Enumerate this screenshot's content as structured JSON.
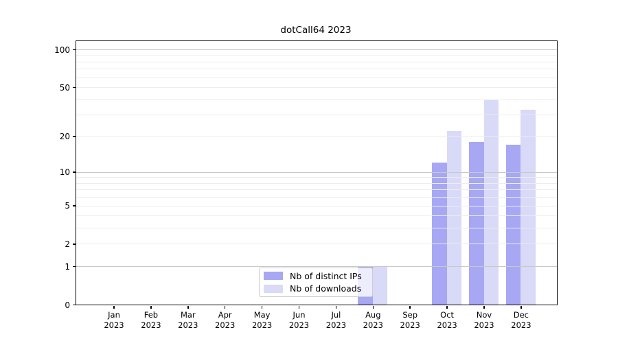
{
  "title": "dotCall64 2023",
  "colors": {
    "ips": "#a7a7f3",
    "downloads": "#d9d9f8",
    "grid_major": "#c9c9c9",
    "grid_minor": "#ededed",
    "spine": "#000000"
  },
  "legend": {
    "items": [
      {
        "label": "Nb of distinct IPs",
        "series": "ips"
      },
      {
        "label": "Nb of downloads",
        "series": "downloads"
      }
    ]
  },
  "chart_data": {
    "type": "bar",
    "title": "dotCall64 2023",
    "categories": [
      "Jan 2023",
      "Feb 2023",
      "Mar 2023",
      "Apr 2023",
      "May 2023",
      "Jun 2023",
      "Jul 2023",
      "Aug 2023",
      "Sep 2023",
      "Oct 2023",
      "Nov 2023",
      "Dec 2023"
    ],
    "x_tick_months": [
      "Jan",
      "Feb",
      "Mar",
      "Apr",
      "May",
      "Jun",
      "Jul",
      "Aug",
      "Sep",
      "Oct",
      "Nov",
      "Dec"
    ],
    "x_tick_year": "2023",
    "series": [
      {
        "name": "Nb of distinct IPs",
        "color_key": "ips",
        "values": [
          0,
          0,
          0,
          0,
          0,
          0,
          0,
          1,
          0,
          12,
          18,
          17
        ]
      },
      {
        "name": "Nb of downloads",
        "color_key": "downloads",
        "values": [
          0,
          0,
          0,
          0,
          0,
          0,
          0,
          1,
          0,
          22,
          40,
          33
        ]
      }
    ],
    "y_scale": "log1p",
    "y_ticks": [
      100,
      50,
      20,
      10,
      5,
      2,
      1,
      0
    ],
    "grid_major_values": [
      1,
      10,
      100
    ],
    "grid_minor_values": [
      2,
      3,
      4,
      5,
      6,
      7,
      8,
      9,
      20,
      30,
      40,
      50,
      60,
      70,
      80,
      90
    ],
    "ylim": [
      0,
      110
    ],
    "legend_position": "lower-center"
  }
}
